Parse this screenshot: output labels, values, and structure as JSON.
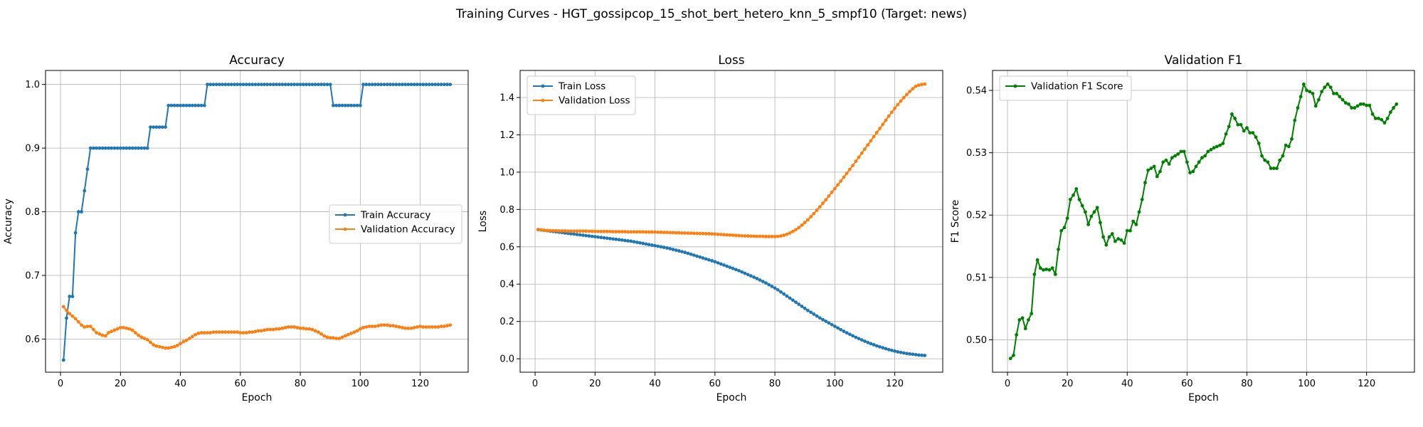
{
  "figure": {
    "title": "Training Curves - HGT_gossipcop_15_shot_bert_hetero_knn_5_smpf10 (Target: news)"
  },
  "chart_data": [
    {
      "type": "line",
      "title": "Accuracy",
      "xlabel": "Epoch",
      "ylabel": "Accuracy",
      "xlim": [
        -5,
        136
      ],
      "ylim": [
        0.548,
        1.022
      ],
      "xticks": [
        0,
        20,
        40,
        60,
        80,
        100,
        120
      ],
      "yticks": [
        0.6,
        0.7,
        0.8,
        0.9,
        1.0
      ],
      "ytick_labels": [
        "0.6",
        "0.7",
        "0.8",
        "0.9",
        "1.0"
      ],
      "grid": true,
      "legend": "center-right",
      "x": {
        "start": 1,
        "end": 130
      },
      "series": [
        {
          "name": "Train Accuracy",
          "color": "#1f77b4",
          "values": [
            0.567,
            0.633,
            0.667,
            0.667,
            0.767,
            0.8,
            0.8,
            0.833,
            0.867,
            0.9,
            0.9,
            0.9,
            0.9,
            0.9,
            0.9,
            0.9,
            0.9,
            0.9,
            0.9,
            0.9,
            0.9,
            0.9,
            0.9,
            0.9,
            0.9,
            0.9,
            0.9,
            0.9,
            0.9,
            0.933,
            0.933,
            0.933,
            0.933,
            0.933,
            0.933,
            0.967,
            0.967,
            0.967,
            0.967,
            0.967,
            0.967,
            0.967,
            0.967,
            0.967,
            0.967,
            0.967,
            0.967,
            0.967,
            1.0,
            1.0,
            1.0,
            1.0,
            1.0,
            1.0,
            1.0,
            1.0,
            1.0,
            1.0,
            1.0,
            1.0,
            1.0,
            1.0,
            1.0,
            1.0,
            1.0,
            1.0,
            1.0,
            1.0,
            1.0,
            1.0,
            1.0,
            1.0,
            1.0,
            1.0,
            1.0,
            1.0,
            1.0,
            1.0,
            1.0,
            1.0,
            1.0,
            1.0,
            1.0,
            1.0,
            1.0,
            1.0,
            1.0,
            1.0,
            1.0,
            1.0,
            0.967,
            0.967,
            0.967,
            0.967,
            0.967,
            0.967,
            0.967,
            0.967,
            0.967,
            0.967,
            1.0,
            1.0,
            1.0,
            1.0,
            1.0,
            1.0,
            1.0,
            1.0,
            1.0,
            1.0,
            1.0,
            1.0,
            1.0,
            1.0,
            1.0,
            1.0,
            1.0,
            1.0,
            1.0,
            1.0,
            1.0,
            1.0,
            1.0,
            1.0,
            1.0,
            1.0,
            1.0,
            1.0,
            1.0,
            1.0
          ]
        },
        {
          "name": "Validation Accuracy",
          "color": "#ff7f0e",
          "values": [
            0.651,
            0.645,
            0.64,
            0.636,
            0.632,
            0.627,
            0.622,
            0.619,
            0.62,
            0.62,
            0.615,
            0.61,
            0.608,
            0.606,
            0.605,
            0.61,
            0.612,
            0.614,
            0.616,
            0.618,
            0.618,
            0.617,
            0.616,
            0.614,
            0.61,
            0.606,
            0.603,
            0.601,
            0.599,
            0.595,
            0.591,
            0.589,
            0.588,
            0.587,
            0.586,
            0.586,
            0.587,
            0.588,
            0.59,
            0.593,
            0.596,
            0.598,
            0.601,
            0.604,
            0.607,
            0.609,
            0.61,
            0.61,
            0.61,
            0.61,
            0.611,
            0.611,
            0.611,
            0.611,
            0.611,
            0.611,
            0.611,
            0.611,
            0.611,
            0.61,
            0.61,
            0.61,
            0.611,
            0.611,
            0.612,
            0.613,
            0.613,
            0.614,
            0.615,
            0.615,
            0.615,
            0.616,
            0.616,
            0.617,
            0.618,
            0.619,
            0.619,
            0.619,
            0.618,
            0.617,
            0.617,
            0.616,
            0.616,
            0.615,
            0.613,
            0.611,
            0.608,
            0.605,
            0.603,
            0.602,
            0.602,
            0.601,
            0.601,
            0.603,
            0.605,
            0.607,
            0.609,
            0.611,
            0.613,
            0.616,
            0.618,
            0.619,
            0.62,
            0.62,
            0.62,
            0.621,
            0.622,
            0.622,
            0.622,
            0.621,
            0.621,
            0.62,
            0.619,
            0.618,
            0.617,
            0.617,
            0.617,
            0.618,
            0.619,
            0.62,
            0.619,
            0.619,
            0.619,
            0.619,
            0.619,
            0.619,
            0.62,
            0.62,
            0.621,
            0.622
          ]
        }
      ]
    },
    {
      "type": "line",
      "title": "Loss",
      "xlabel": "Epoch",
      "ylabel": "Loss",
      "xlim": [
        -5,
        136
      ],
      "ylim": [
        -0.072,
        1.545
      ],
      "xticks": [
        0,
        20,
        40,
        60,
        80,
        100,
        120
      ],
      "yticks": [
        0.0,
        0.2,
        0.4,
        0.6,
        0.8,
        1.0,
        1.2,
        1.4
      ],
      "ytick_labels": [
        "0.0",
        "0.2",
        "0.4",
        "0.6",
        "0.8",
        "1.0",
        "1.2",
        "1.4"
      ],
      "grid": true,
      "legend": "top-left",
      "x": {
        "start": 1,
        "end": 130
      },
      "series": [
        {
          "name": "Train Loss",
          "color": "#1f77b4",
          "values": [
            0.692,
            0.69,
            0.688,
            0.686,
            0.684,
            0.682,
            0.68,
            0.678,
            0.676,
            0.674,
            0.672,
            0.67,
            0.668,
            0.666,
            0.664,
            0.662,
            0.66,
            0.658,
            0.656,
            0.654,
            0.652,
            0.65,
            0.648,
            0.646,
            0.644,
            0.642,
            0.64,
            0.638,
            0.636,
            0.634,
            0.632,
            0.63,
            0.627,
            0.624,
            0.621,
            0.618,
            0.615,
            0.612,
            0.609,
            0.606,
            0.603,
            0.6,
            0.597,
            0.594,
            0.59,
            0.586,
            0.582,
            0.578,
            0.574,
            0.57,
            0.565,
            0.56,
            0.555,
            0.55,
            0.545,
            0.54,
            0.535,
            0.53,
            0.525,
            0.52,
            0.514,
            0.508,
            0.502,
            0.496,
            0.49,
            0.484,
            0.478,
            0.472,
            0.465,
            0.458,
            0.451,
            0.444,
            0.437,
            0.43,
            0.422,
            0.414,
            0.406,
            0.397,
            0.388,
            0.379,
            0.369,
            0.358,
            0.347,
            0.336,
            0.325,
            0.314,
            0.303,
            0.292,
            0.281,
            0.27,
            0.259,
            0.249,
            0.239,
            0.229,
            0.219,
            0.21,
            0.201,
            0.192,
            0.183,
            0.174,
            0.165,
            0.156,
            0.147,
            0.139,
            0.131,
            0.123,
            0.115,
            0.108,
            0.101,
            0.094,
            0.087,
            0.081,
            0.075,
            0.069,
            0.064,
            0.059,
            0.054,
            0.049,
            0.045,
            0.041,
            0.037,
            0.034,
            0.031,
            0.028,
            0.026,
            0.024,
            0.022,
            0.02,
            0.019,
            0.018
          ]
        },
        {
          "name": "Validation Loss",
          "color": "#ff7f0e",
          "values": [
            0.693,
            0.691,
            0.689,
            0.688,
            0.687,
            0.686,
            0.686,
            0.685,
            0.685,
            0.685,
            0.684,
            0.684,
            0.684,
            0.684,
            0.684,
            0.684,
            0.684,
            0.683,
            0.683,
            0.683,
            0.682,
            0.682,
            0.682,
            0.682,
            0.682,
            0.681,
            0.681,
            0.681,
            0.681,
            0.681,
            0.68,
            0.68,
            0.68,
            0.68,
            0.68,
            0.68,
            0.679,
            0.679,
            0.679,
            0.679,
            0.678,
            0.678,
            0.677,
            0.677,
            0.676,
            0.676,
            0.675,
            0.675,
            0.674,
            0.674,
            0.673,
            0.673,
            0.672,
            0.672,
            0.671,
            0.671,
            0.67,
            0.67,
            0.669,
            0.668,
            0.667,
            0.666,
            0.665,
            0.664,
            0.663,
            0.662,
            0.661,
            0.66,
            0.659,
            0.658,
            0.658,
            0.657,
            0.657,
            0.656,
            0.656,
            0.656,
            0.655,
            0.655,
            0.655,
            0.655,
            0.656,
            0.658,
            0.662,
            0.667,
            0.674,
            0.682,
            0.692,
            0.703,
            0.716,
            0.73,
            0.745,
            0.761,
            0.778,
            0.796,
            0.814,
            0.833,
            0.852,
            0.872,
            0.892,
            0.912,
            0.932,
            0.952,
            0.973,
            0.994,
            1.015,
            1.036,
            1.058,
            1.08,
            1.102,
            1.124,
            1.146,
            1.168,
            1.19,
            1.212,
            1.234,
            1.256,
            1.278,
            1.3,
            1.321,
            1.342,
            1.362,
            1.381,
            1.399,
            1.416,
            1.432,
            1.447,
            1.46,
            1.466,
            1.47,
            1.472
          ]
        }
      ]
    },
    {
      "type": "line",
      "title": "Validation F1",
      "xlabel": "Epoch",
      "ylabel": "F1 Score",
      "xlim": [
        -5,
        136
      ],
      "ylim": [
        0.4948,
        0.5432
      ],
      "xticks": [
        0,
        20,
        40,
        60,
        80,
        100,
        120
      ],
      "yticks": [
        0.5,
        0.51,
        0.52,
        0.53,
        0.54
      ],
      "ytick_labels": [
        "0.50",
        "0.51",
        "0.52",
        "0.53",
        "0.54"
      ],
      "grid": true,
      "legend": "top-left",
      "x": {
        "start": 1,
        "end": 130
      },
      "series": [
        {
          "name": "Validation F1 Score",
          "color": "#008000",
          "values": [
            0.497,
            0.4975,
            0.5008,
            0.5032,
            0.5035,
            0.5018,
            0.5032,
            0.5042,
            0.5105,
            0.5128,
            0.5115,
            0.5112,
            0.5113,
            0.5112,
            0.5115,
            0.5105,
            0.5145,
            0.5175,
            0.518,
            0.5195,
            0.5225,
            0.5232,
            0.5242,
            0.5225,
            0.5215,
            0.5205,
            0.5185,
            0.5198,
            0.5205,
            0.5212,
            0.5188,
            0.5165,
            0.5152,
            0.5165,
            0.517,
            0.5158,
            0.5162,
            0.516,
            0.5155,
            0.5175,
            0.5175,
            0.519,
            0.5185,
            0.5205,
            0.5225,
            0.5252,
            0.5272,
            0.5275,
            0.5278,
            0.5262,
            0.527,
            0.5285,
            0.5288,
            0.5282,
            0.5292,
            0.5295,
            0.5298,
            0.5302,
            0.5302,
            0.5285,
            0.5268,
            0.527,
            0.5278,
            0.5285,
            0.5292,
            0.5295,
            0.5302,
            0.5305,
            0.5308,
            0.531,
            0.5312,
            0.5315,
            0.533,
            0.5342,
            0.5362,
            0.5355,
            0.5345,
            0.5345,
            0.5335,
            0.534,
            0.5332,
            0.5332,
            0.5325,
            0.5315,
            0.5295,
            0.5288,
            0.5285,
            0.5275,
            0.5275,
            0.5275,
            0.5288,
            0.5295,
            0.5312,
            0.531,
            0.5322,
            0.5352,
            0.5372,
            0.539,
            0.541,
            0.54,
            0.5398,
            0.5395,
            0.5375,
            0.5385,
            0.5398,
            0.5405,
            0.541,
            0.5405,
            0.5395,
            0.5395,
            0.539,
            0.5385,
            0.538,
            0.5378,
            0.5372,
            0.5372,
            0.5375,
            0.5378,
            0.5378,
            0.5376,
            0.5376,
            0.5362,
            0.5355,
            0.5355,
            0.5353,
            0.5348,
            0.5355,
            0.5365,
            0.5372,
            0.5378
          ]
        }
      ]
    }
  ]
}
